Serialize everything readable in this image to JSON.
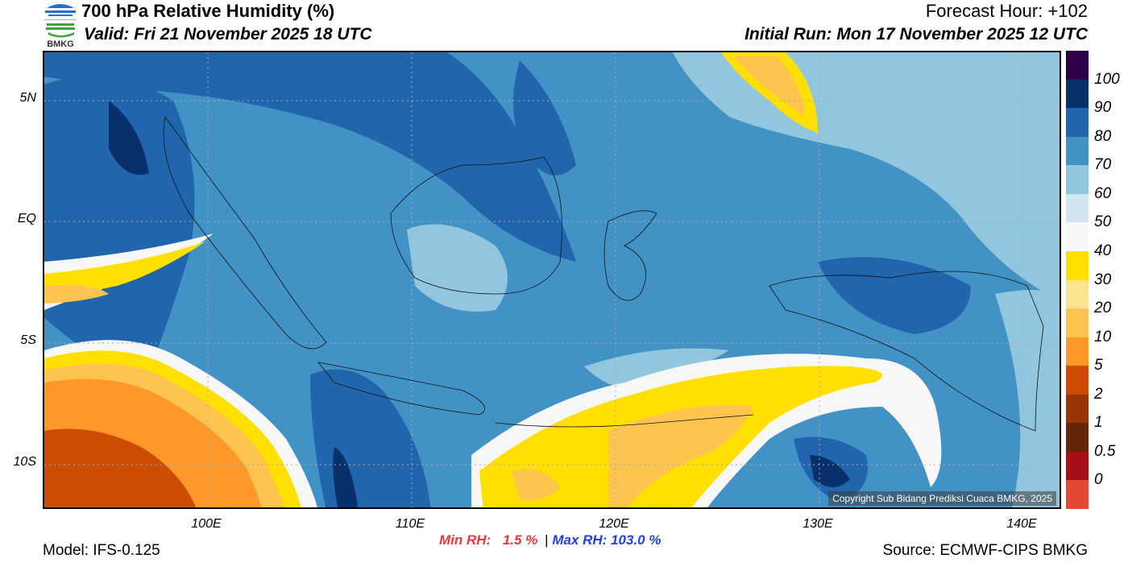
{
  "header": {
    "logo_text": "BMKG",
    "title": "700 hPa Relative Humidity (%)",
    "valid": "Valid: Fri 21 November 2025 18 UTC",
    "forecast_hour": "Forecast Hour: +102",
    "initial_run": "Initial Run: Mon 17 November 2025 12 UTC"
  },
  "map": {
    "lat_labels": [
      "5N",
      "EQ",
      "5S",
      "10S"
    ],
    "lon_labels": [
      "100E",
      "110E",
      "120E",
      "130E",
      "140E"
    ],
    "copyright": "Copyright Sub Bidang Prediksi Cuaca BMKG, 2025"
  },
  "colorbar": {
    "labels": [
      "100",
      "90",
      "80",
      "70",
      "60",
      "50",
      "40",
      "30",
      "20",
      "10",
      "5",
      "2",
      "1",
      "0.5",
      "0"
    ],
    "colors": [
      "#2d004b",
      "#08306b",
      "#2166ac",
      "#4292c6",
      "#92c5de",
      "#d1e5f0",
      "#f7f7f7",
      "#ffe000",
      "#fee391",
      "#fec44f",
      "#fe9929",
      "#cc4c02",
      "#993404",
      "#662506",
      "#a50f15",
      "#e34a33"
    ]
  },
  "footer": {
    "model": "Model: IFS-0.125",
    "min_label": "Min RH:",
    "min_value": "1.5 %",
    "sep": "|",
    "max_label": "Max RH:",
    "max_value": "103.0 %",
    "source": "Source: ECMWF-CIPS BMKG"
  }
}
